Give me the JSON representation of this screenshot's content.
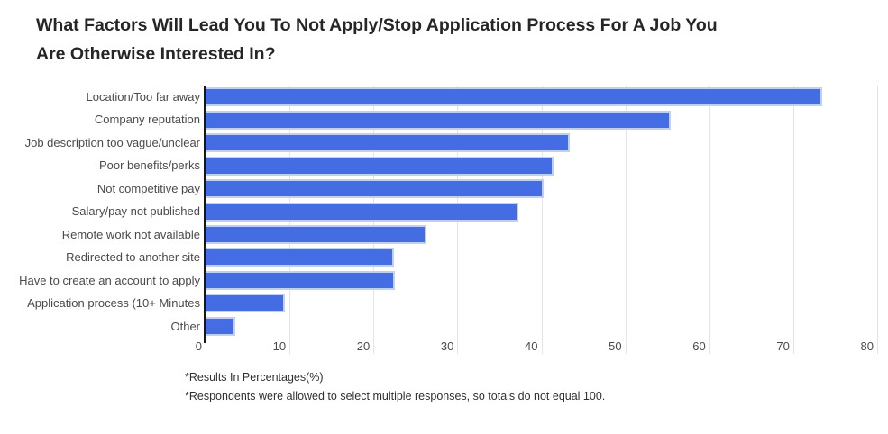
{
  "title": {
    "line1": "What Factors Will Lead You To Not Apply/Stop Application Process For A Job You",
    "line2": "Are Otherwise Interested In?"
  },
  "footnotes": [
    "*Results In Percentages(%)",
    "*Respondents were allowed to select multiple responses, so totals do not equal 100."
  ],
  "colors": {
    "bar_fill": "#446de4",
    "bar_border": "#bfd0f4",
    "axis_line": "#171717",
    "gridline": "#e4e4e4",
    "label_text": "#4a4a4a",
    "title_text": "#262626"
  },
  "chart_data": {
    "type": "bar",
    "orientation": "horizontal",
    "title": "What Factors Will Lead You To Not Apply/Stop Application Process For A Job You Are Otherwise Interested In?",
    "categories": [
      "Location/Too far away",
      "Company reputation",
      "Job description too vague/unclear",
      "Poor benefits/perks",
      "Not competitive pay",
      "Salary/pay not published",
      "Remote work not available",
      "Redirected to another site",
      "Have to create an account to apply",
      "Application process (10+ Minutes",
      "Other"
    ],
    "values": [
      73.5,
      55.4,
      43.4,
      41.4,
      40.3,
      37.3,
      26.3,
      22.4,
      22.6,
      9.4,
      3.5
    ],
    "value_unit": "percent",
    "xlabel": "",
    "ylabel": "",
    "xlim": [
      0,
      80
    ],
    "x_ticks": [
      0,
      10,
      20,
      30,
      40,
      50,
      60,
      70,
      80
    ],
    "grid": "vertical-light",
    "legend": "none"
  }
}
